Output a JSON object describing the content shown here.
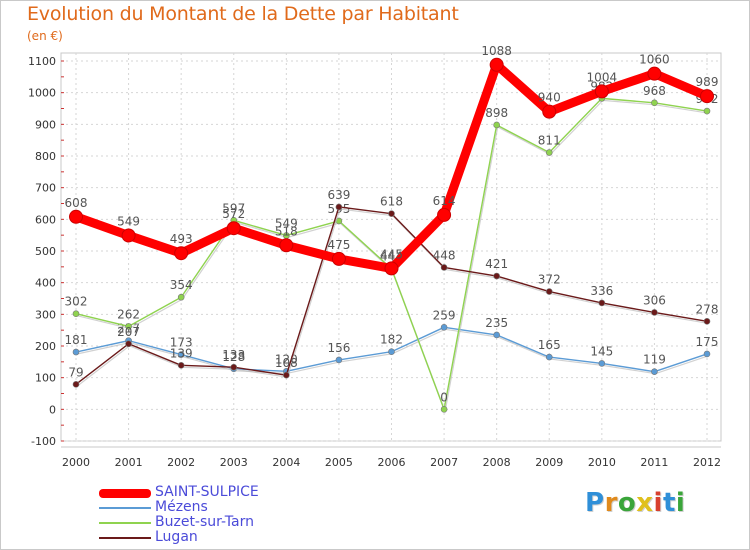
{
  "title": "Evolution du Montant de la Dette par Habitant",
  "subtitle": "(en €)",
  "logo": {
    "text": "Proxiti",
    "colors": [
      "#2f8fd8",
      "#e08a1c",
      "#3aa53a",
      "#e0c01c",
      "#d8402f",
      "#2f8fd8",
      "#3aa53a"
    ]
  },
  "chart_data": {
    "type": "line",
    "categories": [
      "2000",
      "2001",
      "2002",
      "2003",
      "2004",
      "2005",
      "2006",
      "2007",
      "2008",
      "2009",
      "2010",
      "2011",
      "2012"
    ],
    "ylim": [
      -100,
      1100
    ],
    "yticks": [
      -100,
      0,
      100,
      200,
      300,
      400,
      500,
      600,
      700,
      800,
      900,
      1000,
      1100
    ],
    "grid": true,
    "xlabel": "",
    "ylabel": "",
    "legend_position": "bottom-left",
    "series": [
      {
        "name": "SAINT-SULPICE",
        "color": "#ff0000",
        "values": [
          608,
          549,
          493,
          572,
          518,
          475,
          445,
          614,
          1088,
          940,
          1004,
          1060,
          989
        ]
      },
      {
        "name": "Mézens",
        "color": "#5b9bd5",
        "values": [
          181,
          217,
          173,
          128,
          120,
          156,
          182,
          259,
          235,
          165,
          145,
          119,
          175
        ]
      },
      {
        "name": "Buzet-sur-Tarn",
        "color": "#8fd34f",
        "values": [
          302,
          262,
          354,
          597,
          549,
          595,
          444,
          0,
          898,
          811,
          982,
          968,
          942
        ]
      },
      {
        "name": "Lugan",
        "color": "#6b1a1a",
        "values": [
          79,
          207,
          139,
          133,
          108,
          639,
          618,
          448,
          421,
          372,
          336,
          306,
          278
        ]
      }
    ]
  }
}
